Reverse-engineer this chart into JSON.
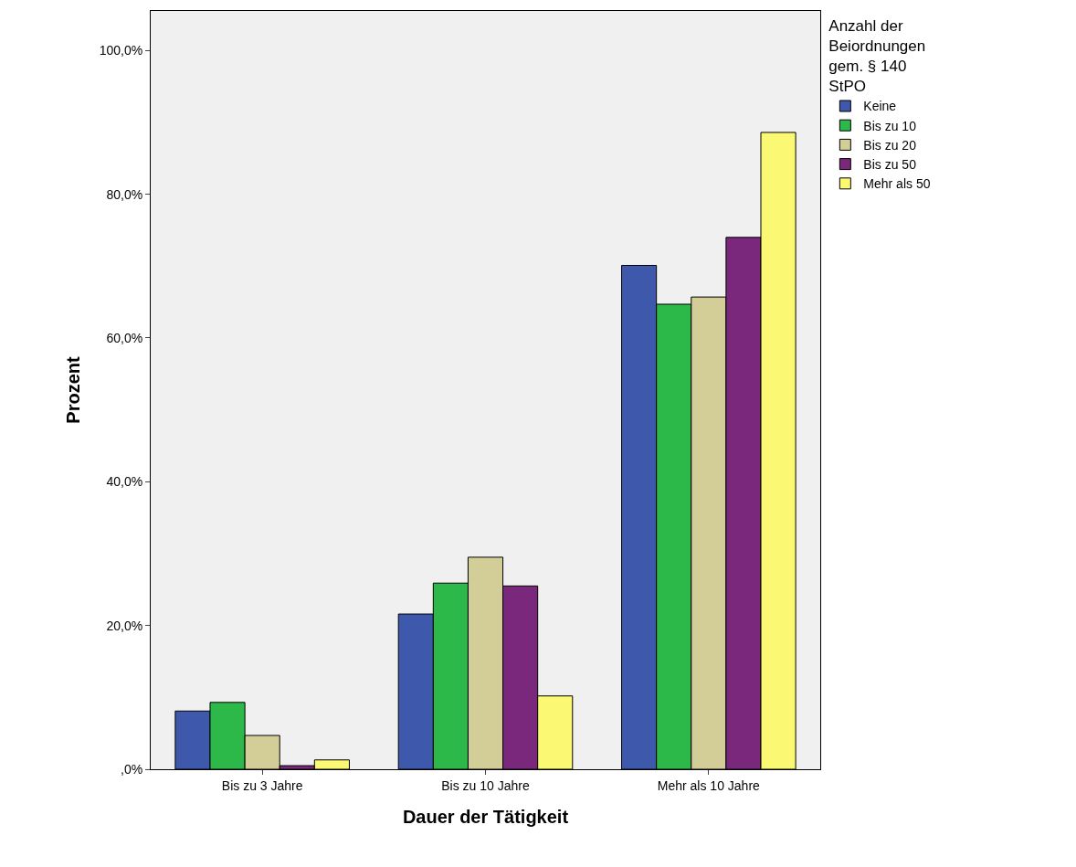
{
  "chart_data": {
    "type": "bar",
    "xlabel": "Dauer der Tätigkeit",
    "ylabel": "Prozent",
    "legend_title": "Anzahl der\nBeiordnungen\ngem. § 140\nStPO",
    "categories": [
      "Bis zu 3 Jahre",
      "Bis zu 10 Jahre",
      "Mehr als 10 Jahre"
    ],
    "series": [
      {
        "name": "Keine",
        "color": "#3e58ac",
        "values": [
          8.1,
          21.6,
          70.1
        ]
      },
      {
        "name": "Bis zu 10",
        "color": "#2db84a",
        "values": [
          9.3,
          25.9,
          64.7
        ]
      },
      {
        "name": "Bis zu 20",
        "color": "#d3ce97",
        "values": [
          4.7,
          29.5,
          65.7
        ]
      },
      {
        "name": "Bis zu 50",
        "color": "#79287b",
        "values": [
          0.5,
          25.5,
          74.0
        ]
      },
      {
        "name": "Mehr als 50",
        "color": "#fbf873",
        "values": [
          1.3,
          10.2,
          88.6
        ]
      }
    ],
    "ylim": [
      0,
      105.5
    ],
    "yticks": [
      {
        "value": 0,
        "label": ",0%"
      },
      {
        "value": 20,
        "label": "20,0%"
      },
      {
        "value": 40,
        "label": "40,0%"
      },
      {
        "value": 60,
        "label": "60,0%"
      },
      {
        "value": 80,
        "label": "80,0%"
      },
      {
        "value": 100,
        "label": "100,0%"
      }
    ],
    "grid": false,
    "legend": "top right"
  }
}
